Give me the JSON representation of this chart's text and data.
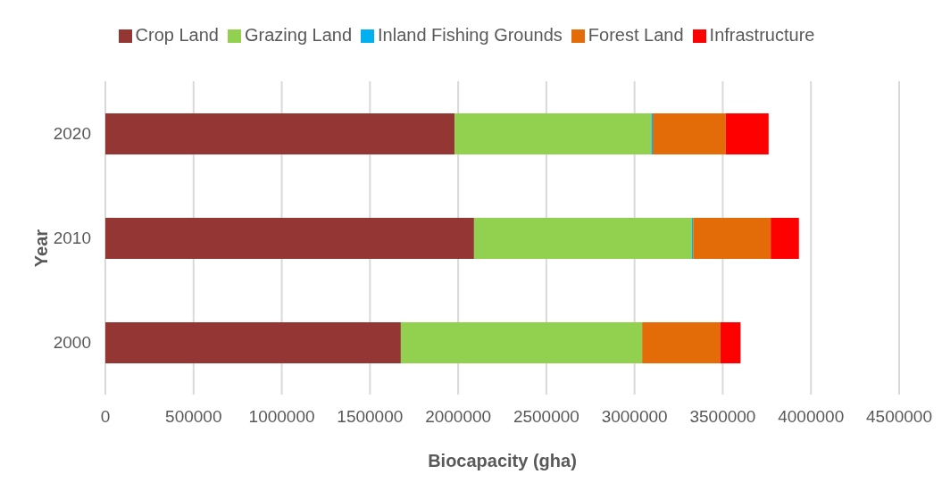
{
  "chart_data": {
    "type": "bar",
    "orientation": "horizontal",
    "stacked": true,
    "xlabel": "Biocapacity (gha)",
    "ylabel": "Year",
    "categories": [
      "2020",
      "2010",
      "2000"
    ],
    "series": [
      {
        "name": "Crop Land",
        "color": "#943634",
        "values": [
          1980000,
          2090000,
          1675000
        ]
      },
      {
        "name": "Grazing Land",
        "color": "#92d050",
        "values": [
          1115000,
          1235000,
          1368000
        ]
      },
      {
        "name": "Inland Fishing Grounds",
        "color": "#00b0f0",
        "values": [
          8000,
          7000,
          null
        ]
      },
      {
        "name": "Forest Land",
        "color": "#e36c09",
        "values": [
          414000,
          440000,
          444000
        ]
      },
      {
        "name": "Infrastructure",
        "color": "#ff0000",
        "values": [
          243000,
          160000,
          114000
        ]
      }
    ],
    "xlim": [
      0,
      4500000
    ],
    "xticks": [
      0,
      500000,
      1000000,
      1500000,
      2000000,
      2500000,
      3000000,
      3500000,
      4000000,
      4500000
    ],
    "grid": "x",
    "legend": "top"
  }
}
